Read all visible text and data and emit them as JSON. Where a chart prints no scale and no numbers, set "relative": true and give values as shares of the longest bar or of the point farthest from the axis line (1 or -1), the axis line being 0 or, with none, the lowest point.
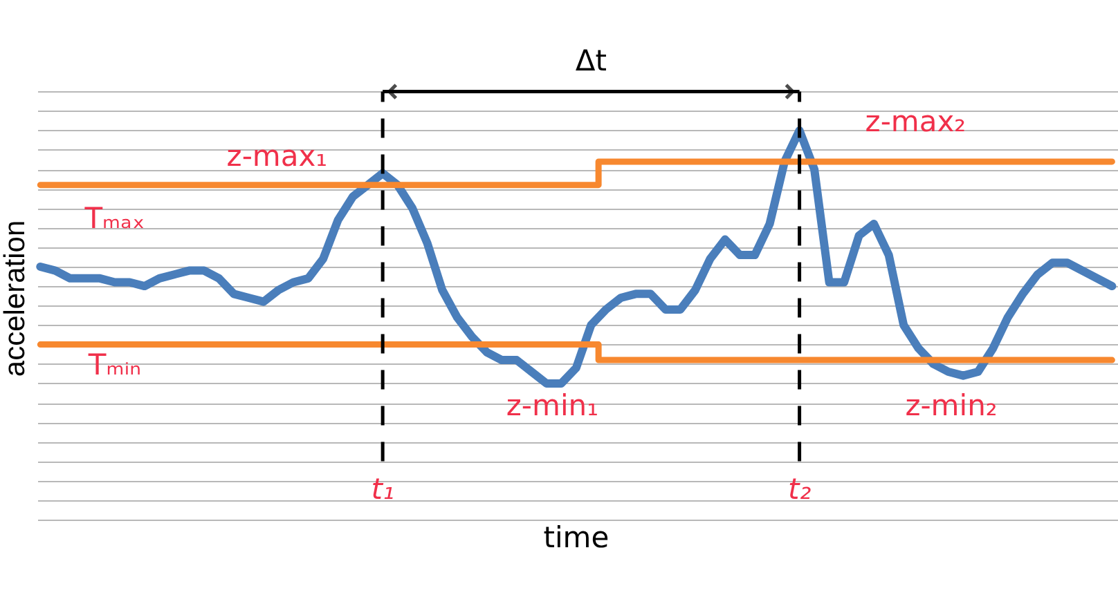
{
  "chart_data": {
    "type": "line",
    "relative": true,
    "xlabel": "time",
    "ylabel": "acceleration",
    "grid": "y",
    "legend": false,
    "categories": [
      null,
      null,
      null,
      null,
      null,
      null,
      null,
      null,
      null,
      null,
      null,
      null,
      null,
      null,
      null,
      null,
      null,
      null,
      null,
      null,
      null,
      null,
      null,
      null,
      null,
      null,
      null,
      null,
      null,
      null,
      null,
      null,
      null,
      null,
      null,
      null,
      null,
      null,
      null,
      null,
      null,
      null,
      null,
      null,
      null,
      null,
      null,
      null,
      null,
      null,
      null,
      null,
      null,
      null,
      null,
      null,
      null,
      null,
      null,
      null,
      null,
      null,
      null,
      null,
      null,
      null,
      null,
      null,
      null,
      null,
      null,
      null,
      null
    ],
    "series": [
      {
        "color": "#4a7ebb",
        "values": [
          0.65,
          0.64,
          0.62,
          0.62,
          0.62,
          0.61,
          0.61,
          0.6,
          0.62,
          0.63,
          0.64,
          0.64,
          0.62,
          0.58,
          0.57,
          0.56,
          0.59,
          0.61,
          0.62,
          0.67,
          0.77,
          0.83,
          0.86,
          0.89,
          0.86,
          0.8,
          0.71,
          0.59,
          0.52,
          0.47,
          0.43,
          0.41,
          0.41,
          0.38,
          0.35,
          0.35,
          0.39,
          0.5,
          0.54,
          0.57,
          0.58,
          0.58,
          0.54,
          0.54,
          0.59,
          0.67,
          0.72,
          0.68,
          0.68,
          0.76,
          0.92,
          1.0,
          0.9,
          0.61,
          0.61,
          0.73,
          0.76,
          0.68,
          0.5,
          0.44,
          0.4,
          0.38,
          0.37,
          0.38,
          0.44,
          0.52,
          0.58,
          0.63,
          0.66,
          0.66,
          0.64,
          0.62,
          0.6
        ]
      },
      {
        "type": "step",
        "name": "Tₘₐₓ",
        "color": "#f7882f",
        "values": [
          0.86,
          0.86,
          0.86,
          0.86,
          0.86,
          0.86,
          0.86,
          0.86,
          0.86,
          0.86,
          0.86,
          0.86,
          0.86,
          0.86,
          0.86,
          0.86,
          0.86,
          0.86,
          0.86,
          0.86,
          0.86,
          0.86,
          0.86,
          0.86,
          0.86,
          0.86,
          0.86,
          0.86,
          0.86,
          0.86,
          0.86,
          0.86,
          0.86,
          0.86,
          0.86,
          0.86,
          0.86,
          0.86,
          0.92,
          0.92,
          0.92,
          0.92,
          0.92,
          0.92,
          0.92,
          0.92,
          0.92,
          0.92,
          0.92,
          0.92,
          0.92,
          0.92,
          0.92,
          0.92,
          0.92,
          0.92,
          0.92,
          0.92,
          0.92,
          0.92,
          0.92,
          0.92,
          0.92,
          0.92,
          0.92,
          0.92,
          0.92,
          0.92,
          0.92,
          0.92,
          0.92,
          0.92,
          0.92
        ]
      },
      {
        "type": "step",
        "name": "Tₘᵢₙ",
        "color": "#f7882f",
        "values": [
          0.45,
          0.45,
          0.45,
          0.45,
          0.45,
          0.45,
          0.45,
          0.45,
          0.45,
          0.45,
          0.45,
          0.45,
          0.45,
          0.45,
          0.45,
          0.45,
          0.45,
          0.45,
          0.45,
          0.45,
          0.45,
          0.45,
          0.45,
          0.45,
          0.45,
          0.45,
          0.45,
          0.45,
          0.45,
          0.45,
          0.45,
          0.45,
          0.45,
          0.45,
          0.45,
          0.45,
          0.45,
          0.45,
          0.41,
          0.41,
          0.41,
          0.41,
          0.41,
          0.41,
          0.41,
          0.41,
          0.41,
          0.41,
          0.41,
          0.41,
          0.41,
          0.41,
          0.41,
          0.41,
          0.41,
          0.41,
          0.41,
          0.41,
          0.41,
          0.41,
          0.41,
          0.41,
          0.41,
          0.41,
          0.41,
          0.41,
          0.41,
          0.41,
          0.41,
          0.41,
          0.41,
          0.41,
          0.41
        ]
      }
    ],
    "annotations": [
      "Δt",
      "z-max₁",
      "z-max₂",
      "z-min₁",
      "z-min₂",
      "t₁",
      "t₂"
    ]
  }
}
